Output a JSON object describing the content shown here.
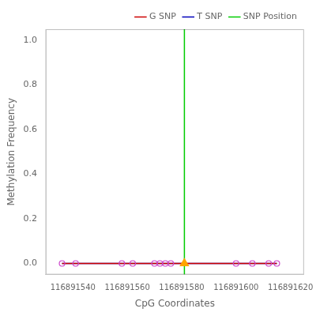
{
  "chart_data": {
    "type": "line",
    "xlabel": "CpG Coordinates",
    "ylabel": "Methylation Frequency",
    "xlim": [
      116891530,
      116891625
    ],
    "ylim": [
      -0.05,
      1.05
    ],
    "xticks": [
      116891540,
      116891560,
      116891580,
      116891600,
      116891620
    ],
    "yticks": [
      {
        "value": 0.0,
        "label": "0.0"
      },
      0.2,
      0.4,
      0.6,
      0.8,
      {
        "value": 1.0,
        "label": "1.0"
      }
    ],
    "grid": false,
    "legend": "upper right",
    "series": [
      {
        "name": "T SNP",
        "type": "line",
        "color": "#0000bb",
        "x": [
          116891536,
          116891541,
          116891558,
          116891562,
          116891570,
          116891572,
          116891574,
          116891576,
          116891581,
          116891600,
          116891606,
          116891612,
          116891615
        ],
        "values": [
          0.0,
          0.0,
          0.0,
          0.0,
          0.0,
          0.0,
          0.0,
          0.0,
          0.0,
          0.0,
          0.0,
          0.0,
          0.0
        ]
      },
      {
        "name": "G SNP",
        "type": "line",
        "color": "#cc0000",
        "x": [
          116891536,
          116891541,
          116891558,
          116891562,
          116891570,
          116891572,
          116891574,
          116891576,
          116891581,
          116891600,
          116891606,
          116891612,
          116891615
        ],
        "values": [
          0.0,
          0.0,
          0.0,
          0.0,
          0.0,
          0.0,
          0.0,
          0.0,
          0.0,
          0.0,
          0.0,
          0.0,
          0.0
        ]
      },
      {
        "name": "SNP Position",
        "type": "vline",
        "color": "#00cc00",
        "x": [
          116891581
        ]
      },
      {
        "type": "scatter",
        "marker": "circle",
        "color": "#cc44cc",
        "x": [
          116891536,
          116891541,
          116891558,
          116891562,
          116891570,
          116891572,
          116891574,
          116891576,
          116891600,
          116891606,
          116891612,
          116891615
        ],
        "values": [
          0.0,
          0.0,
          0.0,
          0.0,
          0.0,
          0.0,
          0.0,
          0.0,
          0.0,
          0.0,
          0.0,
          0.0
        ]
      },
      {
        "type": "scatter",
        "marker": "triangle",
        "color": "#FFA500",
        "x": [
          116891581
        ],
        "values": [
          0.0
        ]
      }
    ]
  }
}
